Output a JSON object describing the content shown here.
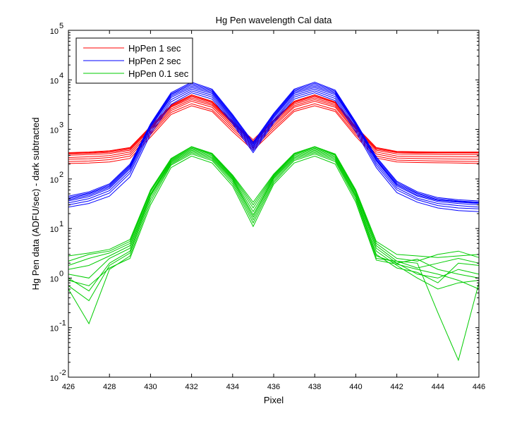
{
  "chart_data": {
    "type": "line",
    "title": "Hg Pen wavelength Cal data",
    "xlabel": "Pixel",
    "ylabel": "Hg Pen data (ADFU/sec) - dark subtracted",
    "xlim": [
      426,
      446
    ],
    "ylim": [
      0.01,
      100000
    ],
    "yscale": "log",
    "x": [
      426,
      427,
      428,
      429,
      430,
      431,
      432,
      433,
      434,
      435,
      436,
      437,
      438,
      439,
      440,
      441,
      442,
      443,
      444,
      445,
      446
    ],
    "xticks": [
      "426",
      "428",
      "430",
      "432",
      "434",
      "436",
      "438",
      "440",
      "442",
      "444",
      "446"
    ],
    "yticks": [
      {
        "base": "10",
        "exp": "-2"
      },
      {
        "base": "10",
        "exp": "-1"
      },
      {
        "base": "10",
        "exp": "0"
      },
      {
        "base": "10",
        "exp": "1"
      },
      {
        "base": "10",
        "exp": "2"
      },
      {
        "base": "10",
        "exp": "3"
      },
      {
        "base": "10",
        "exp": "4"
      },
      {
        "base": "10",
        "exp": "5"
      }
    ],
    "grid": false,
    "legend": {
      "position": "top-left",
      "entries": [
        {
          "label": "HpPen 1 sec",
          "color": "#ff0000"
        },
        {
          "label": "HpPen 2 sec",
          "color": "#0000ff"
        },
        {
          "label": "HpPen 0.1 sec",
          "color": "#00cc00"
        }
      ]
    },
    "series": [
      {
        "group": "HpPen 1 sec",
        "color": "#ff0000",
        "values": [
          330,
          340,
          360,
          420,
          1100,
          3000,
          4800,
          3600,
          1400,
          580,
          1500,
          3600,
          4800,
          3500,
          1100,
          420,
          350,
          345,
          345,
          345,
          345
        ]
      },
      {
        "group": "HpPen 1 sec",
        "color": "#ff0000",
        "values": [
          340,
          350,
          370,
          430,
          1150,
          3100,
          5000,
          3700,
          1450,
          620,
          1550,
          3700,
          5000,
          3600,
          1150,
          430,
          360,
          355,
          350,
          350,
          350
        ]
      },
      {
        "group": "HpPen 1 sec",
        "color": "#ff0000",
        "values": [
          320,
          330,
          345,
          400,
          1050,
          2900,
          4600,
          3450,
          1350,
          560,
          1450,
          3450,
          4600,
          3400,
          1050,
          400,
          340,
          335,
          335,
          335,
          335
        ]
      },
      {
        "group": "HpPen 1 sec",
        "color": "#ff0000",
        "values": [
          300,
          310,
          325,
          380,
          1000,
          2800,
          4300,
          3250,
          1300,
          540,
          1350,
          3250,
          4300,
          3200,
          1000,
          380,
          320,
          315,
          312,
          310,
          310
        ]
      },
      {
        "group": "HpPen 1 sec",
        "color": "#ff0000",
        "values": [
          270,
          280,
          295,
          350,
          920,
          2600,
          4000,
          3050,
          1200,
          500,
          1250,
          3000,
          4000,
          3000,
          930,
          350,
          290,
          285,
          282,
          280,
          280
        ]
      },
      {
        "group": "HpPen 1 sec",
        "color": "#ff0000",
        "values": [
          250,
          255,
          270,
          320,
          850,
          2400,
          3700,
          2800,
          1100,
          460,
          1150,
          2800,
          3700,
          2800,
          860,
          320,
          265,
          260,
          255,
          252,
          250
        ]
      },
      {
        "group": "HpPen 1 sec",
        "color": "#ff0000",
        "values": [
          225,
          230,
          245,
          290,
          780,
          2200,
          3300,
          2500,
          1000,
          420,
          1050,
          2500,
          3300,
          2500,
          790,
          290,
          240,
          235,
          230,
          228,
          225
        ]
      },
      {
        "group": "HpPen 1 sec",
        "color": "#ff0000",
        "values": [
          205,
          210,
          220,
          260,
          700,
          2000,
          3000,
          2300,
          900,
          380,
          950,
          2300,
          3000,
          2300,
          720,
          265,
          220,
          215,
          212,
          210,
          205
        ]
      },
      {
        "group": "HpPen 2 sec",
        "color": "#0000ff",
        "values": [
          45,
          55,
          80,
          200,
          1300,
          5500,
          9000,
          6500,
          2000,
          550,
          2100,
          6500,
          9000,
          6200,
          1400,
          280,
          90,
          55,
          42,
          38,
          36
        ]
      },
      {
        "group": "HpPen 2 sec",
        "color": "#0000ff",
        "values": [
          42,
          52,
          76,
          190,
          1250,
          5200,
          8500,
          6200,
          1900,
          520,
          2000,
          6200,
          8500,
          5900,
          1350,
          265,
          85,
          52,
          40,
          36,
          34
        ]
      },
      {
        "group": "HpPen 2 sec",
        "color": "#0000ff",
        "values": [
          40,
          50,
          72,
          180,
          1200,
          5000,
          8000,
          5900,
          1800,
          490,
          1900,
          5900,
          8000,
          5600,
          1300,
          250,
          80,
          50,
          38,
          35,
          33
        ]
      },
      {
        "group": "HpPen 2 sec",
        "color": "#0000ff",
        "values": [
          38,
          47,
          68,
          170,
          1150,
          4700,
          7500,
          5600,
          1700,
          460,
          1800,
          5600,
          7500,
          5300,
          1250,
          240,
          76,
          47,
          37,
          34,
          32
        ]
      },
      {
        "group": "HpPen 2 sec",
        "color": "#0000ff",
        "values": [
          36,
          44,
          64,
          160,
          1100,
          4400,
          7000,
          5300,
          1600,
          430,
          1700,
          5300,
          7000,
          5000,
          1200,
          230,
          72,
          45,
          35,
          32,
          30
        ]
      },
      {
        "group": "HpPen 2 sec",
        "color": "#0000ff",
        "values": [
          33,
          40,
          58,
          145,
          1000,
          4000,
          6500,
          4900,
          1500,
          400,
          1550,
          4900,
          6500,
          4600,
          1100,
          210,
          66,
          41,
          32,
          29,
          27
        ]
      },
      {
        "group": "HpPen 2 sec",
        "color": "#0000ff",
        "values": [
          30,
          36,
          52,
          130,
          900,
          3600,
          6000,
          4500,
          1400,
          370,
          1450,
          4500,
          6000,
          4200,
          1000,
          190,
          60,
          38,
          29,
          26,
          25
        ]
      },
      {
        "group": "HpPen 2 sec",
        "color": "#0000ff",
        "values": [
          27,
          32,
          45,
          110,
          800,
          3200,
          5500,
          4100,
          1300,
          340,
          1350,
          4100,
          5500,
          3800,
          900,
          170,
          53,
          34,
          26,
          23,
          22
        ]
      },
      {
        "group": "HpPen 0.1 sec",
        "color": "#00cc00",
        "values": [
          2.8,
          3.2,
          3.8,
          6,
          60,
          260,
          450,
          330,
          120,
          34,
          125,
          330,
          450,
          320,
          60,
          5.5,
          3,
          2.8,
          2.6,
          2.8,
          3
        ]
      },
      {
        "group": "HpPen 0.1 sec",
        "color": "#00cc00",
        "values": [
          2.2,
          3.0,
          3.5,
          5.5,
          58,
          250,
          440,
          320,
          115,
          30,
          120,
          320,
          440,
          310,
          58,
          5.0,
          2.5,
          2.2,
          3.0,
          3.5,
          2.6
        ]
      },
      {
        "group": "HpPen 0.1 sec",
        "color": "#00cc00",
        "values": [
          1.8,
          2.5,
          3.2,
          5.0,
          55,
          240,
          420,
          310,
          110,
          26,
          115,
          310,
          420,
          300,
          55,
          4.5,
          2.2,
          1.6,
          2.0,
          2.5,
          2.0
        ]
      },
      {
        "group": "HpPen 0.1 sec",
        "color": "#00cc00",
        "values": [
          1.5,
          1.8,
          2.8,
          4.5,
          50,
          230,
          400,
          295,
          105,
          22,
          110,
          295,
          400,
          285,
          52,
          4.0,
          2.0,
          1.2,
          1.0,
          1.5,
          1.2
        ]
      },
      {
        "group": "HpPen 0.1 sec",
        "color": "#00cc00",
        "values": [
          1.2,
          1.0,
          2.5,
          4.0,
          48,
          220,
          380,
          280,
          100,
          19,
          105,
          280,
          380,
          270,
          48,
          3.5,
          1.8,
          1.0,
          0.6,
          0.8,
          0.9
        ]
      },
      {
        "group": "HpPen 0.1 sec",
        "color": "#00cc00",
        "values": [
          1.0,
          0.55,
          2.0,
          3.5,
          45,
          210,
          360,
          265,
          95,
          17,
          100,
          265,
          360,
          255,
          45,
          3.0,
          1.6,
          1.3,
          0.8,
          2.0,
          1.8
        ]
      },
      {
        "group": "HpPen 0.1 sec",
        "color": "#00cc00",
        "values": [
          0.7,
          0.35,
          1.8,
          3.2,
          40,
          200,
          340,
          250,
          88,
          15,
          92,
          250,
          340,
          240,
          42,
          2.8,
          2.0,
          2.4,
          1.5,
          1.2,
          1.0
        ]
      },
      {
        "group": "HpPen 0.1 sec",
        "color": "#00cc00",
        "values": [
          0.6,
          0.12,
          1.5,
          2.8,
          35,
          190,
          320,
          235,
          80,
          13,
          85,
          235,
          320,
          225,
          38,
          2.5,
          2.2,
          2.0,
          0.2,
          0.022,
          0.8
        ]
      },
      {
        "group": "HpPen 0.1 sec",
        "color": "#00cc00",
        "values": [
          0.9,
          0.7,
          1.6,
          2.5,
          30,
          170,
          290,
          210,
          72,
          11,
          78,
          210,
          290,
          200,
          34,
          2.3,
          1.9,
          1.5,
          1.2,
          0.9,
          0.6
        ]
      }
    ]
  }
}
